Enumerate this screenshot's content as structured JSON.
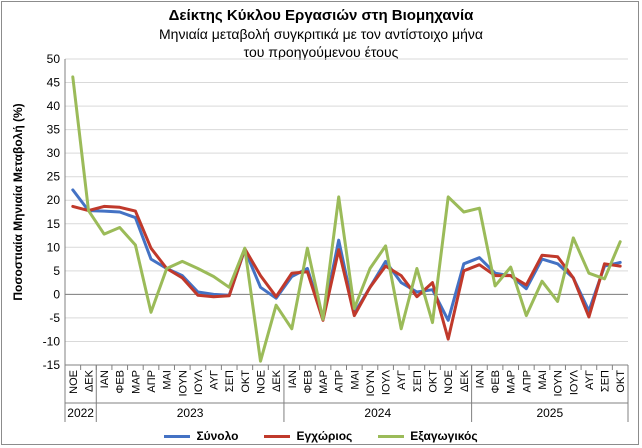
{
  "chart_data": {
    "type": "line",
    "title": "Δείκτης Κύκλου Εργασιών στη Βιομηχανία",
    "subtitle_line1": "Μηνιαία μεταβολή συγκριτικά με τον αντίστοιχο μήνα",
    "subtitle_line2": "του προηγούμενου έτους",
    "ylabel": "Ποσοστιαία Μηνιαία Μεταβολή (%)",
    "ylim": [
      -15,
      50
    ],
    "yticks": [
      -15,
      -10,
      -5,
      0,
      5,
      10,
      15,
      20,
      25,
      30,
      35,
      40,
      45,
      50
    ],
    "grid": true,
    "legend_position": "bottom",
    "categories": [
      "ΝΟΕ",
      "ΔΕΚ",
      "ΙΑΝ",
      "ΦΕΒ",
      "ΜΑΡ",
      "ΑΠΡ",
      "ΜΑΙ",
      "ΙΟΥΝ",
      "ΙΟΥΛ",
      "ΑΥΓ",
      "ΣΕΠ",
      "ΟΚΤ",
      "ΝΟΕ",
      "ΔΕΚ",
      "ΙΑΝ",
      "ΦΕΒ",
      "ΜΑΡ",
      "ΑΠΡ",
      "ΜΑΙ",
      "ΙΟΥΝ",
      "ΙΟΥΛ",
      "ΑΥΓ",
      "ΣΕΠ",
      "ΟΚΤ",
      "ΝΟΕ",
      "ΔΕΚ",
      "ΙΑΝ",
      "ΦΕΒ",
      "ΜΑΡ",
      "ΑΠΡ",
      "ΜΑΙ",
      "ΙΟΥΝ",
      "ΙΟΥΛ",
      "ΑΥΓ",
      "ΣΕΠ",
      "ΟΚΤ"
    ],
    "years": [
      {
        "label": "2022",
        "start": 0,
        "end": 1
      },
      {
        "label": "2023",
        "start": 2,
        "end": 13
      },
      {
        "label": "2024",
        "start": 14,
        "end": 25
      },
      {
        "label": "2025",
        "start": 26,
        "end": 35
      }
    ],
    "series": [
      {
        "name": "Σύνολο",
        "color": "#4472c4",
        "values": [
          22.2,
          17.8,
          17.7,
          17.5,
          16.3,
          7.5,
          5.5,
          4.0,
          0.5,
          0.0,
          -0.2,
          9.5,
          1.5,
          -0.8,
          3.8,
          5.5,
          -5.0,
          11.5,
          -4.0,
          1.5,
          7.0,
          2.5,
          0.5,
          1.0,
          -5.5,
          6.5,
          7.8,
          4.5,
          4.0,
          1.2,
          7.5,
          6.5,
          3.5,
          -3.5,
          6.0,
          6.8
        ]
      },
      {
        "name": "Εγχώριος",
        "color": "#c0392b",
        "values": [
          18.7,
          17.8,
          18.7,
          18.5,
          17.7,
          9.8,
          5.5,
          3.5,
          -0.2,
          -0.5,
          -0.3,
          9.7,
          4.0,
          -0.5,
          4.5,
          4.8,
          -5.5,
          9.5,
          -4.5,
          1.5,
          6.0,
          4.0,
          -0.5,
          2.5,
          -9.5,
          5.0,
          6.3,
          4.0,
          4.0,
          2.0,
          8.3,
          8.0,
          3.5,
          -4.8,
          6.5,
          6.0
        ]
      },
      {
        "name": "Εξαγωγικός",
        "color": "#9bbb59",
        "values": [
          46.2,
          17.8,
          12.8,
          14.2,
          10.5,
          -3.8,
          5.5,
          7.0,
          5.5,
          3.8,
          1.5,
          9.8,
          -14.2,
          -2.3,
          -7.3,
          9.8,
          -5.3,
          20.7,
          -3.0,
          5.5,
          10.3,
          -7.3,
          5.5,
          -6.0,
          20.7,
          17.5,
          18.3,
          1.8,
          5.8,
          -4.5,
          2.8,
          -1.5,
          12.0,
          4.5,
          3.3,
          11.2
        ]
      }
    ]
  }
}
